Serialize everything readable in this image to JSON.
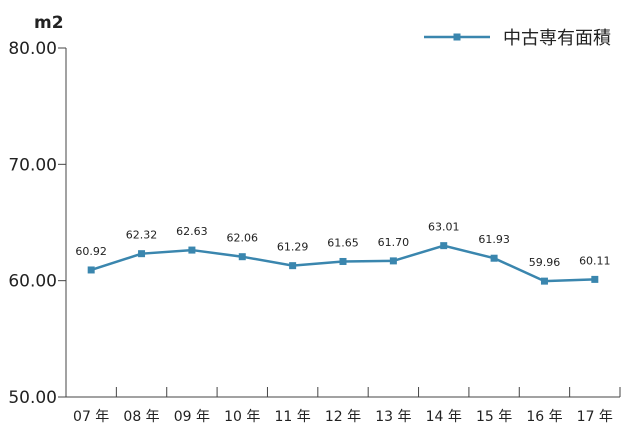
{
  "chart_data": {
    "type": "line",
    "title": "",
    "xlabel": "",
    "ylabel": "m2",
    "ylim": [
      50,
      80
    ],
    "yticks": [
      "80.00",
      "70.00",
      "60.00",
      "50.00"
    ],
    "categories": [
      "07 年",
      "08 年",
      "09 年",
      "10 年",
      "11 年",
      "12 年",
      "13 年",
      "14 年",
      "15 年",
      "16 年",
      "17 年"
    ],
    "series": [
      {
        "name": "中古専有面積",
        "values": [
          60.92,
          62.32,
          62.63,
          62.06,
          61.29,
          61.65,
          61.7,
          63.01,
          61.93,
          59.96,
          60.11
        ],
        "labels": [
          "60.92",
          "62.32",
          "62.63",
          "62.06",
          "61.29",
          "61.65",
          "61.70",
          "63.01",
          "61.93",
          "59.96",
          "60.11"
        ]
      }
    ],
    "grid": false,
    "legend_position": "top-right",
    "colors": {
      "series": "#3a86ae",
      "axis": "#444444"
    }
  }
}
